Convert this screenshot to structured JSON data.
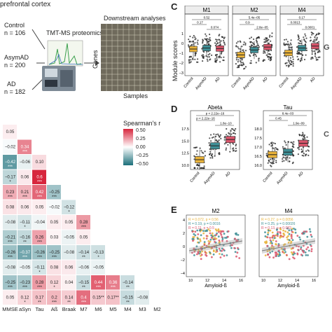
{
  "panel_a": {
    "region": "prefrontal cortex",
    "groups": [
      {
        "name": "Control",
        "n": "n = 106"
      },
      {
        "name": "AsymAD",
        "n": "n = 200"
      },
      {
        "name": "AD",
        "n": "n = 182"
      }
    ],
    "method": "TMT-MS proteomics",
    "downstream": "Downstream analyses",
    "genes_label": "Genes",
    "samples_label": "Samples"
  },
  "panel_b": {
    "legend_title": "Spearman's r",
    "legend_ticks": [
      "0.50",
      "0.25",
      "0.00",
      "−0.25",
      "−0.50"
    ],
    "x_labels": [
      "MMSE",
      "aSyn",
      "Tau",
      "Aß",
      "Braak",
      "M7",
      "M6",
      "M5",
      "M4",
      "M3",
      "M2"
    ],
    "colors": {
      "pos": "#d7263d",
      "neg": "#1b6f7a",
      "mid": "#ffffff"
    },
    "rows": [
      [
        {
          "v": "0.05",
          "s": ""
        }
      ],
      [
        {
          "v": "−0.02",
          "s": ""
        },
        {
          "v": "0.34",
          "s": "***"
        }
      ],
      [
        {
          "v": "−0.42",
          "s": "***"
        },
        {
          "v": "−0.06",
          "s": ""
        },
        {
          "v": "0.10",
          "s": ""
        }
      ],
      [
        {
          "v": "−0.17",
          "s": "*"
        },
        {
          "v": "0.06",
          "s": ""
        },
        {
          "v": "0.6",
          "s": "***"
        }
      ],
      [
        {
          "v": "0.23",
          "s": "***"
        },
        {
          "v": "0.21",
          "s": "***"
        },
        {
          "v": "0.42",
          "s": "***"
        },
        {
          "v": "−0.25",
          "s": "***"
        }
      ],
      [
        {
          "v": "0.08",
          "s": ""
        },
        {
          "v": "0.06",
          "s": ""
        },
        {
          "v": "0.05",
          "s": ""
        },
        {
          "v": "−0.02",
          "s": ""
        },
        {
          "v": "−0.12",
          "s": "*"
        }
      ],
      [
        {
          "v": "−0.08",
          "s": ""
        },
        {
          "v": "−0.11",
          "s": "*"
        },
        {
          "v": "−0.04",
          "s": ""
        },
        {
          "v": "0.05",
          "s": ""
        },
        {
          "v": "0.05",
          "s": ""
        },
        {
          "v": "0.28",
          "s": "***"
        }
      ],
      [
        {
          "v": "−0.21",
          "s": "***"
        },
        {
          "v": "−0.16",
          "s": "**"
        },
        {
          "v": "0.26",
          "s": "***"
        },
        {
          "v": "0.03",
          "s": ""
        },
        {
          "v": "−0.05",
          "s": ""
        },
        {
          "v": "0.05",
          "s": ""
        }
      ],
      [
        {
          "v": "−0.26",
          "s": "***"
        },
        {
          "v": "−0.37",
          "s": "***"
        },
        {
          "v": "−0.26",
          "s": "***"
        },
        {
          "v": "−0.25",
          "s": "***"
        },
        {
          "v": "−0.08",
          "s": ""
        },
        {
          "v": "−0.14",
          "s": "**"
        },
        {
          "v": "−0.13",
          "s": "*"
        }
      ],
      [
        {
          "v": "−0.08",
          "s": ""
        },
        {
          "v": "−0.05",
          "s": ""
        },
        {
          "v": "−0.11",
          "s": "*"
        },
        {
          "v": "0.08",
          "s": ""
        },
        {
          "v": "0.06",
          "s": ""
        },
        {
          "v": "−0.06",
          "s": ""
        },
        {
          "v": "−0.05",
          "s": ""
        }
      ],
      [
        {
          "v": "−0.25",
          "s": "***"
        },
        {
          "v": "−0.23",
          "s": "***"
        },
        {
          "v": "0.28",
          "s": "***"
        },
        {
          "v": "0.12",
          "s": "*"
        },
        {
          "v": "0.04",
          "s": ""
        },
        {
          "v": "−0.15",
          "s": "**"
        },
        {
          "v": "0.44",
          "s": "***"
        },
        {
          "v": "0.36",
          "s": "***"
        },
        {
          "v": "−0.14",
          "s": "**"
        }
      ],
      [
        {
          "v": "0.05",
          "s": ""
        },
        {
          "v": "0.12",
          "s": "*"
        },
        {
          "v": "0.17",
          "s": "**"
        },
        {
          "v": "0.2",
          "s": "***"
        },
        {
          "v": "0.14",
          "s": "**"
        },
        {
          "v": "0.4",
          "s": "***"
        },
        {
          "v": "0.15**",
          "s": ""
        },
        {
          "v": "0.17**",
          "s": ""
        },
        {
          "v": "−0.15",
          "s": "**"
        },
        {
          "v": "−0.08",
          "s": ""
        }
      ]
    ]
  },
  "panel_c": {
    "letter": "C",
    "ylabel": "Module scores",
    "x_labels": [
      "Control",
      "AsymAD",
      "AD"
    ],
    "trailing_letter": "G",
    "subplots": [
      {
        "title": "M1",
        "p": [
          "0.52",
          "0.17",
          "0.074"
        ],
        "y_ticks": [
          "1",
          "0",
          "−1",
          "−2",
          "−3"
        ]
      },
      {
        "title": "M2",
        "p": [
          "5.4e−05",
          "0.9",
          "2.8e−05"
        ],
        "y_ticks": []
      },
      {
        "title": "M4",
        "p": [
          "0.17",
          "0.0013",
          "0.0001"
        ],
        "y_ticks": []
      }
    ],
    "colors": {
      "control": "#e8b23a",
      "asymad": "#3f8f96",
      "ad": "#d9556b"
    }
  },
  "panel_d": {
    "letter": "D",
    "trailing_letter": "C",
    "x_labels": [
      "Control",
      "AsymAD",
      "AD"
    ],
    "subplots": [
      {
        "title": "Abeta",
        "p": [
          "p < 2.22e−16",
          "p < 2.22e−16",
          "1.8e−10"
        ],
        "y_ticks": [
          "17.5",
          "15.0",
          "12.5",
          "10.0"
        ]
      },
      {
        "title": "Tau",
        "p": [
          "8.4e−03",
          "0.45",
          "1.9e−09"
        ],
        "y_ticks": [
          "18.0",
          "17.5",
          "17.0",
          "16.5",
          "16.0"
        ]
      }
    ]
  },
  "panel_e": {
    "letter": "E",
    "xlabel": "Amyloid-ß",
    "x_ticks": [
      "10",
      "12",
      "14",
      "16"
    ],
    "y_ticks": [
      "4",
      "2",
      "0",
      "−2",
      "−4"
    ],
    "subplots": [
      {
        "title": "M2",
        "stats": [
          "R = 0.072, p = 0.56",
          "R = 0.19, p = 0.0016",
          "R = 0.11, p = 0.5"
        ]
      },
      {
        "title": "M4",
        "stats": [
          "R = 0.27, p = 0.0056",
          "R = 0.25, p = 0.00026",
          "R = 0.13, p = 0.082"
        ]
      }
    ]
  }
}
